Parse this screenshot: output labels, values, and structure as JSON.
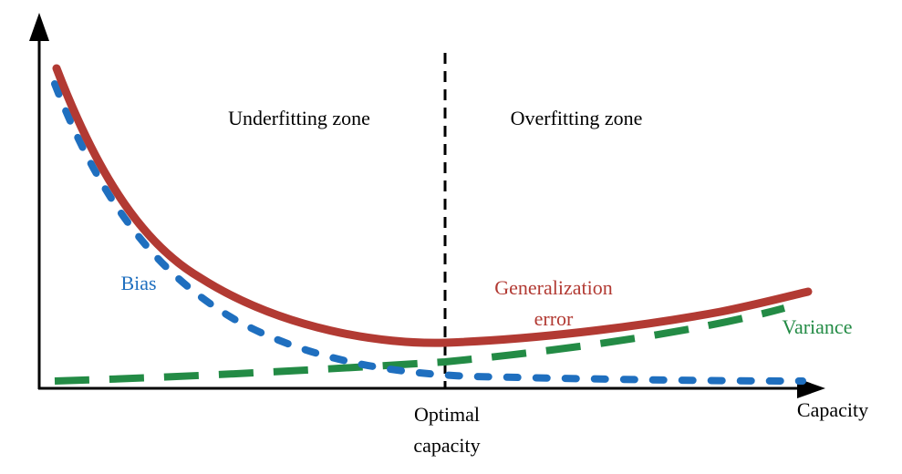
{
  "zones": {
    "left": "Underfitting zone",
    "right": "Overfitting zone"
  },
  "curves": {
    "bias": "Bias",
    "generalization": [
      "Generalization",
      "error"
    ],
    "variance": "Variance"
  },
  "axis": {
    "x_label": "Capacity",
    "optimal": [
      "Optimal",
      "capacity"
    ]
  }
}
